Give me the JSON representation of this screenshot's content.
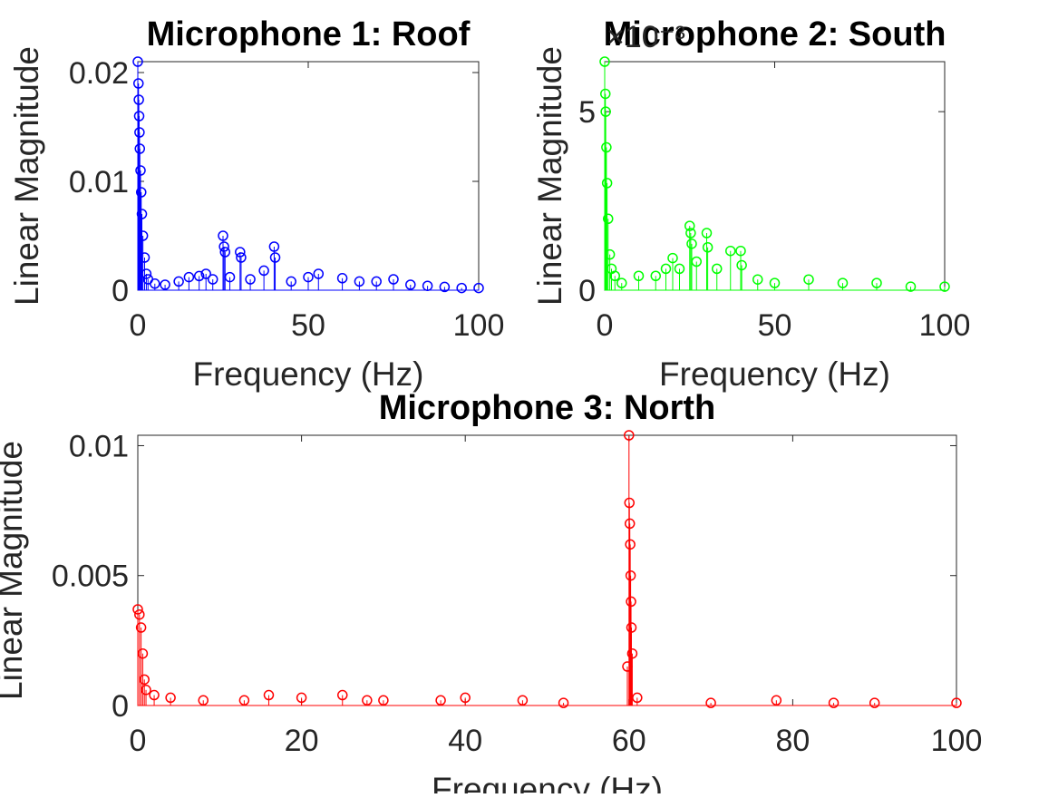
{
  "chart_data": [
    {
      "type": "stem",
      "title": "Microphone 1: Roof",
      "x_label": "Frequency (Hz)",
      "y_label": "Linear Magnitude",
      "color": "#0000ff",
      "x": [
        0,
        0.2,
        0.3,
        0.4,
        0.5,
        0.6,
        0.8,
        1,
        1.2,
        1.5,
        2,
        2.5,
        3,
        5,
        8,
        12,
        15,
        18,
        20,
        22,
        25,
        25.3,
        25.6,
        27,
        30,
        30.3,
        33,
        37,
        40,
        40.3,
        45,
        50,
        53,
        60,
        65,
        70,
        75,
        80,
        85,
        90,
        95,
        100
      ],
      "values": [
        0.021,
        0.019,
        0.0175,
        0.016,
        0.0145,
        0.013,
        0.011,
        0.009,
        0.007,
        0.005,
        0.003,
        0.0015,
        0.001,
        0.0006,
        0.0005,
        0.0008,
        0.0012,
        0.0013,
        0.0015,
        0.001,
        0.005,
        0.004,
        0.0035,
        0.0012,
        0.0035,
        0.003,
        0.001,
        0.0018,
        0.004,
        0.003,
        0.0008,
        0.0012,
        0.0015,
        0.0011,
        0.0008,
        0.0008,
        0.001,
        0.0005,
        0.0004,
        0.0003,
        0.0002,
        0.0002
      ],
      "xlim": [
        0,
        100
      ],
      "xticks": [
        0,
        50,
        100
      ],
      "ylim": [
        0,
        0.021
      ],
      "yticks": [
        0,
        0.01,
        0.02
      ]
    },
    {
      "type": "stem",
      "title": "Microphone 2: South",
      "x_label": "Frequency (Hz)",
      "y_label": "Linear Magnitude",
      "y_multiplier": "×10⁻³",
      "color": "#00ff00",
      "x": [
        0,
        0.2,
        0.3,
        0.5,
        0.7,
        1,
        1.5,
        2,
        3,
        5,
        10,
        15,
        18,
        20,
        22,
        25,
        25.3,
        25.6,
        27,
        30,
        30.3,
        33,
        37,
        40,
        40.3,
        45,
        50,
        60,
        70,
        80,
        90,
        100
      ],
      "values": [
        0.0064,
        0.0055,
        0.005,
        0.004,
        0.003,
        0.002,
        0.001,
        0.0006,
        0.0004,
        0.0002,
        0.0004,
        0.0004,
        0.0006,
        0.0009,
        0.0006,
        0.0018,
        0.0016,
        0.0013,
        0.0008,
        0.0016,
        0.0012,
        0.0006,
        0.0011,
        0.0011,
        0.0007,
        0.0003,
        0.0002,
        0.0003,
        0.0002,
        0.0002,
        0.0001,
        0.0001
      ],
      "xlim": [
        0,
        100
      ],
      "xticks": [
        0,
        50,
        100
      ],
      "ylim": [
        0,
        0.0064
      ],
      "yticks": [
        0,
        {
          "value": 0.005,
          "label": "5"
        }
      ]
    },
    {
      "type": "stem",
      "title": "Microphone 3: North",
      "x_label": "Frequency (Hz)",
      "y_label": "Linear Magnitude",
      "color": "#ff0000",
      "x": [
        0,
        0.2,
        0.4,
        0.6,
        0.8,
        1,
        2,
        4,
        8,
        13,
        16,
        20,
        25,
        28,
        30,
        37,
        40,
        47,
        52,
        59.8,
        60,
        60.05,
        60.1,
        60.15,
        60.2,
        60.25,
        60.3,
        60.4,
        61,
        70,
        78,
        85,
        90,
        100
      ],
      "values": [
        0.0037,
        0.0035,
        0.003,
        0.002,
        0.001,
        0.0006,
        0.0004,
        0.0003,
        0.0002,
        0.0002,
        0.0004,
        0.0003,
        0.0004,
        0.0002,
        0.0002,
        0.0002,
        0.0003,
        0.0002,
        0.0001,
        0.0015,
        0.0104,
        0.0078,
        0.007,
        0.0062,
        0.005,
        0.004,
        0.003,
        0.002,
        0.0003,
        0.0001,
        0.0002,
        0.0001,
        0.0001,
        0.0001
      ],
      "xlim": [
        0,
        100
      ],
      "xticks": [
        0,
        20,
        40,
        60,
        80,
        100
      ],
      "ylim": [
        0,
        0.0104
      ],
      "yticks": [
        0,
        0.005,
        0.01
      ]
    }
  ]
}
